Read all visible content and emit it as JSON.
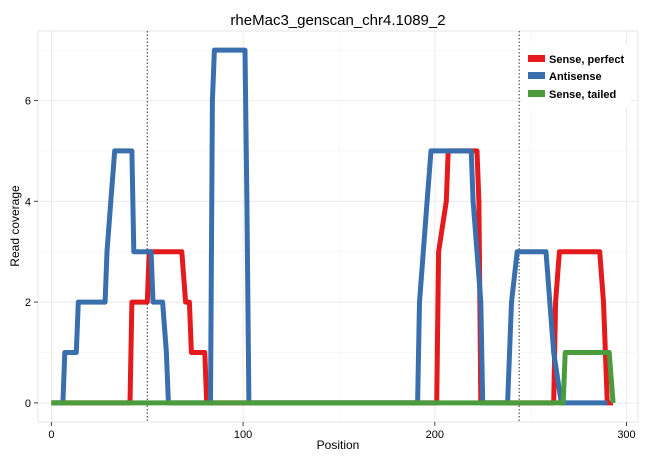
{
  "chart_data": {
    "type": "line",
    "title": "rheMac3_genscan_chr4.1089_2",
    "xlabel": "Position",
    "ylabel": "Read coverage",
    "xlim": [
      -7,
      306
    ],
    "ylim": [
      -0.38,
      7.38
    ],
    "xticks": [
      0,
      100,
      200,
      300
    ],
    "yticks": [
      0,
      2,
      4,
      6
    ],
    "grid": true,
    "legend_position": "top-right",
    "vlines": [
      50,
      244
    ],
    "series": [
      {
        "name": "Sense, perfect",
        "color": "#e41a1c",
        "points": [
          [
            0,
            0
          ],
          [
            41,
            0
          ],
          [
            42,
            2
          ],
          [
            50,
            2
          ],
          [
            51,
            3
          ],
          [
            68,
            3
          ],
          [
            70,
            2
          ],
          [
            72,
            2
          ],
          [
            73,
            1
          ],
          [
            80,
            1
          ],
          [
            81,
            0
          ],
          [
            201,
            0
          ],
          [
            202,
            3
          ],
          [
            206,
            4
          ],
          [
            207,
            5
          ],
          [
            222,
            5
          ],
          [
            223,
            4
          ],
          [
            224,
            0
          ],
          [
            262,
            0
          ],
          [
            263,
            2
          ],
          [
            265,
            3
          ],
          [
            286,
            3
          ],
          [
            288,
            2
          ],
          [
            290,
            0
          ],
          [
            293,
            0
          ]
        ]
      },
      {
        "name": "Antisense",
        "color": "#3a6fad",
        "points": [
          [
            0,
            0
          ],
          [
            6,
            0
          ],
          [
            7,
            1
          ],
          [
            13,
            1
          ],
          [
            14,
            2
          ],
          [
            28,
            2
          ],
          [
            29,
            3
          ],
          [
            31,
            4
          ],
          [
            33,
            5
          ],
          [
            42,
            5
          ],
          [
            43,
            3
          ],
          [
            52,
            3
          ],
          [
            53,
            2
          ],
          [
            58,
            2
          ],
          [
            60,
            1
          ],
          [
            61,
            0
          ],
          [
            83,
            0
          ],
          [
            84,
            6
          ],
          [
            85,
            7
          ],
          [
            101,
            7
          ],
          [
            102,
            4
          ],
          [
            103,
            0
          ],
          [
            191,
            0
          ],
          [
            192,
            2
          ],
          [
            196,
            4
          ],
          [
            198,
            5
          ],
          [
            219,
            5
          ],
          [
            220,
            4
          ],
          [
            222,
            3
          ],
          [
            224,
            2
          ],
          [
            225,
            0
          ],
          [
            238,
            0
          ],
          [
            240,
            2
          ],
          [
            243,
            3
          ],
          [
            258,
            3
          ],
          [
            260,
            2
          ],
          [
            262,
            1
          ],
          [
            266,
            0
          ],
          [
            290,
            0
          ]
        ]
      },
      {
        "name": "Sense, tailed",
        "color": "#4a9c3d",
        "points": [
          [
            0,
            0
          ],
          [
            267,
            0
          ],
          [
            268,
            1
          ],
          [
            291,
            1
          ],
          [
            293,
            0
          ]
        ]
      }
    ]
  }
}
